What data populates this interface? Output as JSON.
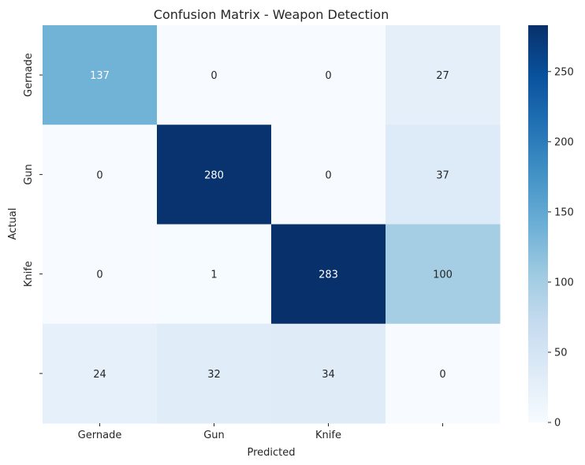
{
  "chart_data": {
    "type": "heatmap",
    "title": "Confusion Matrix - Weapon Detection",
    "xlabel": "Predicted",
    "ylabel": "Actual",
    "x_categories": [
      "Gernade",
      "Gun",
      "Knife",
      ""
    ],
    "y_categories": [
      "Gernade",
      "Gun",
      "Knife",
      ""
    ],
    "values": [
      [
        137,
        0,
        0,
        27
      ],
      [
        0,
        280,
        0,
        37
      ],
      [
        0,
        1,
        283,
        100
      ],
      [
        24,
        32,
        34,
        0
      ]
    ],
    "colormap": "Blues",
    "vmin": 0,
    "vmax": 283,
    "colorbar_ticks": [
      0,
      50,
      100,
      150,
      200,
      250
    ]
  }
}
